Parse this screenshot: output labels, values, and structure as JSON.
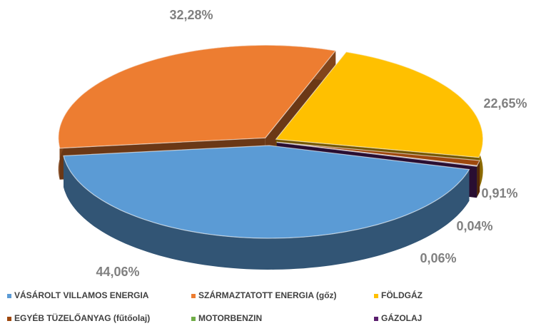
{
  "chart_data": {
    "type": "pie3d",
    "categories": [
      "VÁSÁROLT VILLAMOS ENERGIA",
      "SZÁRMAZTATOTT ENERGIA (gőz)",
      "FÖLDGÁZ",
      "EGYÉB TÜZELŐANYAG (fűtőolaj)",
      "MOTORBENZIN",
      "GÁZOLAJ"
    ],
    "values": [
      44.06,
      32.28,
      22.65,
      0.91,
      0.04,
      0.06
    ],
    "value_labels": [
      "44,06%",
      "32,28%",
      "22,65%",
      "0,91%",
      "0,04%",
      "0,06%"
    ],
    "colors": [
      "#5b9bd5",
      "#ed7d31",
      "#ffc000",
      "#9e480e",
      "#70ad47",
      "#5b1f6e"
    ],
    "legend": "bottom"
  }
}
